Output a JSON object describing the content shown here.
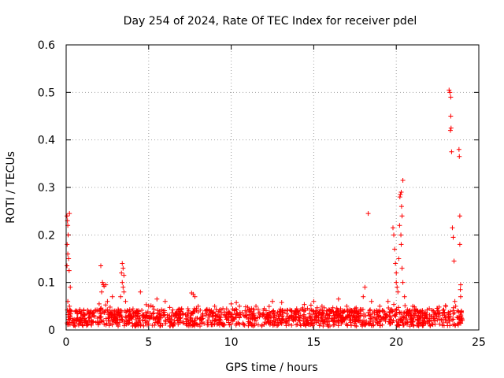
{
  "chart_data": {
    "type": "scatter",
    "title": "Day 254 of 2024, Rate Of TEC Index for receiver pdel",
    "xlabel": "GPS time / hours",
    "ylabel": "ROTI / TECUs",
    "xlim": [
      0,
      25
    ],
    "ylim": [
      0,
      0.6
    ],
    "x_ticks": [
      "0",
      "5",
      "10",
      "15",
      "20",
      "25"
    ],
    "y_ticks": [
      "0",
      "0.1",
      "0.2",
      "0.3",
      "0.4",
      "0.5",
      "0.6"
    ],
    "grid": true,
    "marker": "+",
    "color": "#ff0000",
    "series": [
      {
        "points": [
          [
            0.05,
            0.24
          ],
          [
            0.08,
            0.23
          ],
          [
            0.1,
            0.22
          ],
          [
            0.12,
            0.2
          ],
          [
            0.06,
            0.18
          ],
          [
            0.1,
            0.16
          ],
          [
            0.15,
            0.15
          ],
          [
            0.05,
            0.135
          ],
          [
            0.2,
            0.245
          ],
          [
            0.18,
            0.125
          ],
          [
            0.25,
            0.09
          ],
          [
            0.1,
            0.06
          ],
          [
            0.2,
            0.05
          ],
          [
            0.3,
            0.04
          ],
          [
            1.0,
            0.03
          ],
          [
            1.5,
            0.04
          ],
          [
            2.0,
            0.055
          ],
          [
            2.1,
            0.135
          ],
          [
            2.2,
            0.1
          ],
          [
            2.25,
            0.095
          ],
          [
            2.3,
            0.092
          ],
          [
            2.15,
            0.08
          ],
          [
            2.4,
            0.095
          ],
          [
            2.5,
            0.06
          ],
          [
            2.8,
            0.07
          ],
          [
            3.4,
            0.14
          ],
          [
            3.45,
            0.13
          ],
          [
            3.35,
            0.12
          ],
          [
            3.5,
            0.115
          ],
          [
            3.4,
            0.1
          ],
          [
            3.45,
            0.09
          ],
          [
            3.5,
            0.08
          ],
          [
            3.3,
            0.07
          ],
          [
            3.6,
            0.06
          ],
          [
            4.0,
            0.04
          ],
          [
            4.5,
            0.08
          ],
          [
            5.0,
            0.05
          ],
          [
            5.5,
            0.065
          ],
          [
            6.0,
            0.06
          ],
          [
            7.0,
            0.045
          ],
          [
            7.6,
            0.078
          ],
          [
            7.7,
            0.075
          ],
          [
            7.8,
            0.07
          ],
          [
            8.0,
            0.05
          ],
          [
            9.0,
            0.05
          ],
          [
            9.5,
            0.045
          ],
          [
            10.0,
            0.055
          ],
          [
            10.5,
            0.05
          ],
          [
            11.0,
            0.048
          ],
          [
            11.5,
            0.05
          ],
          [
            12.0,
            0.045
          ],
          [
            12.5,
            0.06
          ],
          [
            13.0,
            0.04
          ],
          [
            14.0,
            0.04
          ],
          [
            15.0,
            0.06
          ],
          [
            15.5,
            0.05
          ],
          [
            16.0,
            0.04
          ],
          [
            16.5,
            0.065
          ],
          [
            17.0,
            0.05
          ],
          [
            17.5,
            0.045
          ],
          [
            18.0,
            0.07
          ],
          [
            18.1,
            0.09
          ],
          [
            18.3,
            0.245
          ],
          [
            18.5,
            0.06
          ],
          [
            19.0,
            0.05
          ],
          [
            19.5,
            0.06
          ],
          [
            19.8,
            0.215
          ],
          [
            19.85,
            0.2
          ],
          [
            19.9,
            0.17
          ],
          [
            19.95,
            0.14
          ],
          [
            20.0,
            0.12
          ],
          [
            20.0,
            0.1
          ],
          [
            20.05,
            0.09
          ],
          [
            20.1,
            0.08
          ],
          [
            20.15,
            0.15
          ],
          [
            20.2,
            0.22
          ],
          [
            20.22,
            0.28
          ],
          [
            20.25,
            0.285
          ],
          [
            20.3,
            0.29
          ],
          [
            20.32,
            0.26
          ],
          [
            20.35,
            0.24
          ],
          [
            20.4,
            0.315
          ],
          [
            20.28,
            0.2
          ],
          [
            20.3,
            0.18
          ],
          [
            20.35,
            0.13
          ],
          [
            20.4,
            0.1
          ],
          [
            20.5,
            0.07
          ],
          [
            20.8,
            0.04
          ],
          [
            21.0,
            0.05
          ],
          [
            21.5,
            0.04
          ],
          [
            22.0,
            0.045
          ],
          [
            22.5,
            0.04
          ],
          [
            23.0,
            0.05
          ],
          [
            23.2,
            0.505
          ],
          [
            23.25,
            0.5
          ],
          [
            23.3,
            0.49
          ],
          [
            23.3,
            0.45
          ],
          [
            23.32,
            0.425
          ],
          [
            23.28,
            0.42
          ],
          [
            23.35,
            0.375
          ],
          [
            23.4,
            0.215
          ],
          [
            23.45,
            0.195
          ],
          [
            23.5,
            0.145
          ],
          [
            23.55,
            0.06
          ],
          [
            23.6,
            0.05
          ],
          [
            23.8,
            0.38
          ],
          [
            23.82,
            0.365
          ],
          [
            23.85,
            0.24
          ],
          [
            23.85,
            0.18
          ],
          [
            23.9,
            0.095
          ],
          [
            23.88,
            0.085
          ],
          [
            23.9,
            0.07
          ],
          [
            23.95,
            0.04
          ],
          [
            24.0,
            0.02
          ]
        ]
      }
    ]
  }
}
